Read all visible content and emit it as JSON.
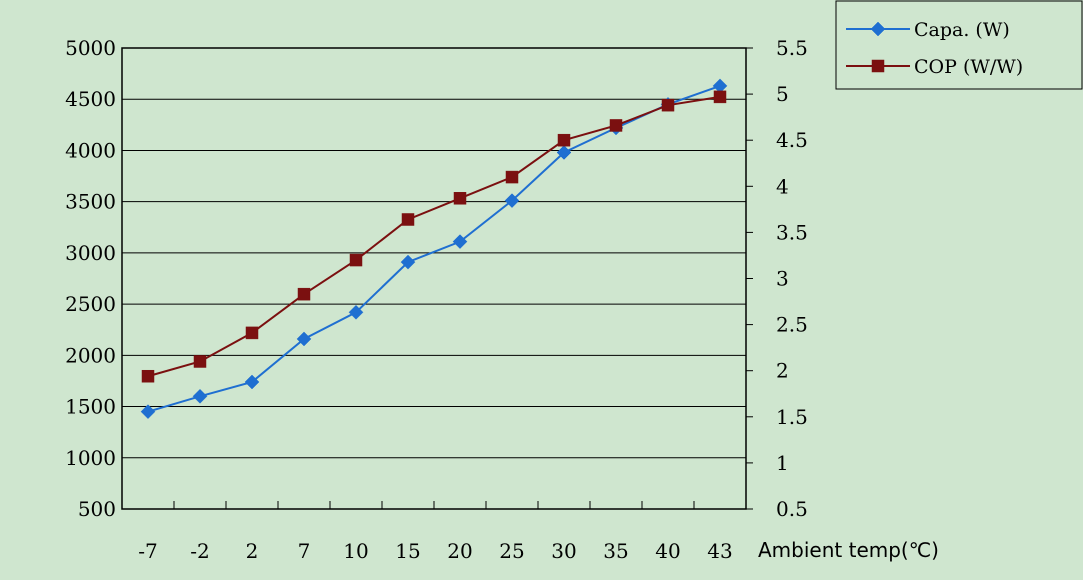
{
  "chart_data": {
    "type": "line",
    "categories": [
      "-7",
      "-2",
      "2",
      "7",
      "10",
      "15",
      "20",
      "25",
      "30",
      "35",
      "40",
      "43"
    ],
    "xlabel": "Ambient temp(℃)",
    "y_left": {
      "ylim": [
        500,
        5000
      ],
      "ticks": [
        "500",
        "1000",
        "1500",
        "2000",
        "2500",
        "3000",
        "3500",
        "4000",
        "4500",
        "5000"
      ]
    },
    "y_right": {
      "ylim": [
        0.5,
        5.5
      ],
      "ticks": [
        "0.5",
        "1",
        "1.5",
        "2",
        "2.5",
        "3",
        "3.5",
        "4",
        "4.5",
        "5",
        "5.5"
      ]
    },
    "grid": true,
    "legend_position": "top-right",
    "series": [
      {
        "name": "Capa. (W)",
        "axis": "left",
        "color": "#1f6fd1",
        "marker": "diamond",
        "values": [
          1450,
          1600,
          1740,
          2160,
          2420,
          2910,
          3110,
          3510,
          3980,
          4220,
          4450,
          4630
        ]
      },
      {
        "name": "COP (W/W)",
        "axis": "right",
        "color": "#7b1010",
        "marker": "square",
        "values": [
          1.94,
          2.1,
          2.41,
          2.83,
          3.2,
          3.64,
          3.87,
          4.1,
          4.5,
          4.66,
          4.88,
          4.97
        ]
      }
    ]
  }
}
